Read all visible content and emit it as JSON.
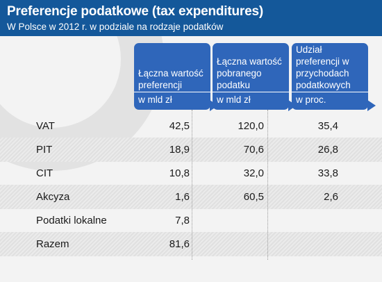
{
  "header": {
    "title": "Preferencje podatkowe (tax expenditures)",
    "subtitle": "W Polsce w 2012 r. w podziale na rodzaje podatków"
  },
  "columns": [
    {
      "label": "Łączna wartość preferencji",
      "unit": "w mld zł"
    },
    {
      "label": "Łączna wartość pobranego podatku",
      "unit": "w mld zł"
    },
    {
      "label": "Udział preferencji w przychodach podatkowych",
      "unit": "w proc."
    }
  ],
  "rows": [
    {
      "label": "VAT",
      "c1": "42,5",
      "c2": "120,0",
      "c3": "35,4"
    },
    {
      "label": "PIT",
      "c1": "18,9",
      "c2": "70,6",
      "c3": "26,8"
    },
    {
      "label": "CIT",
      "c1": "10,8",
      "c2": "32,0",
      "c3": "33,8"
    },
    {
      "label": "Akcyza",
      "c1": "1,6",
      "c2": "60,5",
      "c3": "2,6"
    },
    {
      "label": "Podatki lokalne",
      "c1": "7,8",
      "c2": "",
      "c3": ""
    },
    {
      "label": "Razem",
      "c1": "81,6",
      "c2": "",
      "c3": ""
    }
  ],
  "colors": {
    "header_bg": "#14589a",
    "column_header_bg": "#2f66ba",
    "background": "#f3f3f3",
    "stripe": "#e4e4e4"
  },
  "chart_data": {
    "type": "table",
    "title": "Preferencje podatkowe (tax expenditures)",
    "subtitle": "W Polsce w 2012 r. w podziale na rodzaje podatków",
    "columns": [
      "Łączna wartość preferencji w mld zł",
      "Łączna wartość pobranego podatku w mld zł",
      "Udział preferencji w przychodach podatkowych w proc."
    ],
    "categories": [
      "VAT",
      "PIT",
      "CIT",
      "Akcyza",
      "Podatki lokalne",
      "Razem"
    ],
    "series": [
      {
        "name": "Łączna wartość preferencji",
        "values": [
          42.5,
          18.9,
          10.8,
          1.6,
          7.8,
          81.6
        ]
      },
      {
        "name": "Łączna wartość pobranego podatku",
        "values": [
          120.0,
          70.6,
          32.0,
          60.5,
          null,
          null
        ]
      },
      {
        "name": "Udział preferencji w przychodach podatkowych",
        "values": [
          35.4,
          26.8,
          33.8,
          2.6,
          null,
          null
        ]
      }
    ]
  }
}
